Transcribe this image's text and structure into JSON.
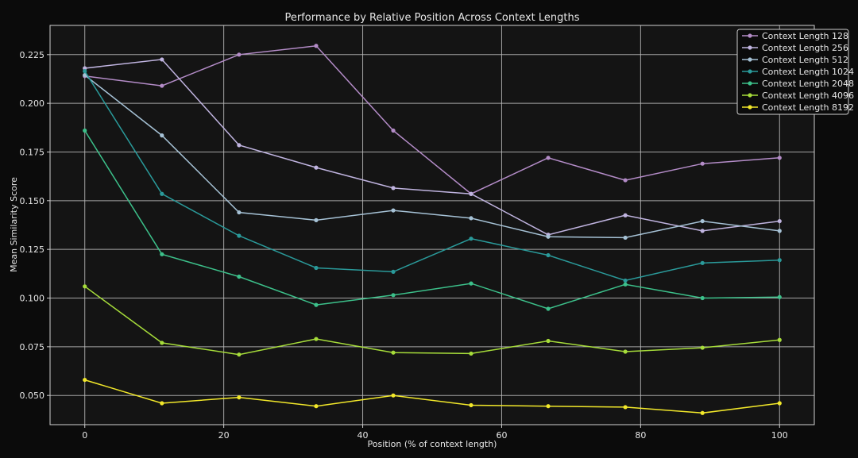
{
  "chart_data": {
    "type": "line",
    "title": "Performance by Relative Position Across Context Lengths",
    "xlabel": "Position (% of context length)",
    "ylabel": "Mean Similarity Score",
    "xlim": [
      -5,
      105
    ],
    "ylim": [
      0.035,
      0.24
    ],
    "xticks": [
      0,
      20,
      40,
      60,
      80,
      100
    ],
    "yticks": [
      0.05,
      0.075,
      0.1,
      0.125,
      0.15,
      0.175,
      0.2,
      0.225
    ],
    "xtick_labels": [
      "0",
      "20",
      "40",
      "60",
      "80",
      "100"
    ],
    "ytick_labels": [
      "0.050",
      "0.075",
      "0.100",
      "0.125",
      "0.150",
      "0.175",
      "0.200",
      "0.225"
    ],
    "grid": true,
    "legend_position": "top-right",
    "x": [
      0,
      11.1,
      22.2,
      33.3,
      44.4,
      55.6,
      66.7,
      77.8,
      88.9,
      100
    ],
    "series": [
      {
        "name": "Context Length 128",
        "color": "#b48cc8",
        "values": [
          0.214,
          0.209,
          0.225,
          0.2295,
          0.186,
          0.1535,
          0.172,
          0.1605,
          0.169,
          0.172
        ]
      },
      {
        "name": "Context Length 256",
        "color": "#c0b4e0",
        "values": [
          0.218,
          0.2225,
          0.1785,
          0.167,
          0.1565,
          0.1535,
          0.1325,
          0.1425,
          0.1345,
          0.1395
        ]
      },
      {
        "name": "Context Length 512",
        "color": "#a6c2d6",
        "values": [
          0.2145,
          0.1835,
          0.144,
          0.14,
          0.145,
          0.141,
          0.1315,
          0.131,
          0.1395,
          0.1345
        ]
      },
      {
        "name": "Context Length 1024",
        "color": "#2a9a9a",
        "values": [
          0.2165,
          0.1535,
          0.132,
          0.1155,
          0.1135,
          0.1305,
          0.122,
          0.109,
          0.118,
          0.1195
        ]
      },
      {
        "name": "Context Length 2048",
        "color": "#3cc08a",
        "values": [
          0.186,
          0.1225,
          0.111,
          0.0965,
          0.1015,
          0.1075,
          0.0945,
          0.107,
          0.1,
          0.1005
        ]
      },
      {
        "name": "Context Length 4096",
        "color": "#a6dc3a",
        "values": [
          0.106,
          0.077,
          0.071,
          0.079,
          0.072,
          0.0715,
          0.078,
          0.0725,
          0.0745,
          0.0785
        ]
      },
      {
        "name": "Context Length 8192",
        "color": "#f2e82a",
        "values": [
          0.058,
          0.046,
          0.049,
          0.0445,
          0.05,
          0.045,
          0.0445,
          0.044,
          0.041,
          0.046
        ]
      }
    ]
  }
}
